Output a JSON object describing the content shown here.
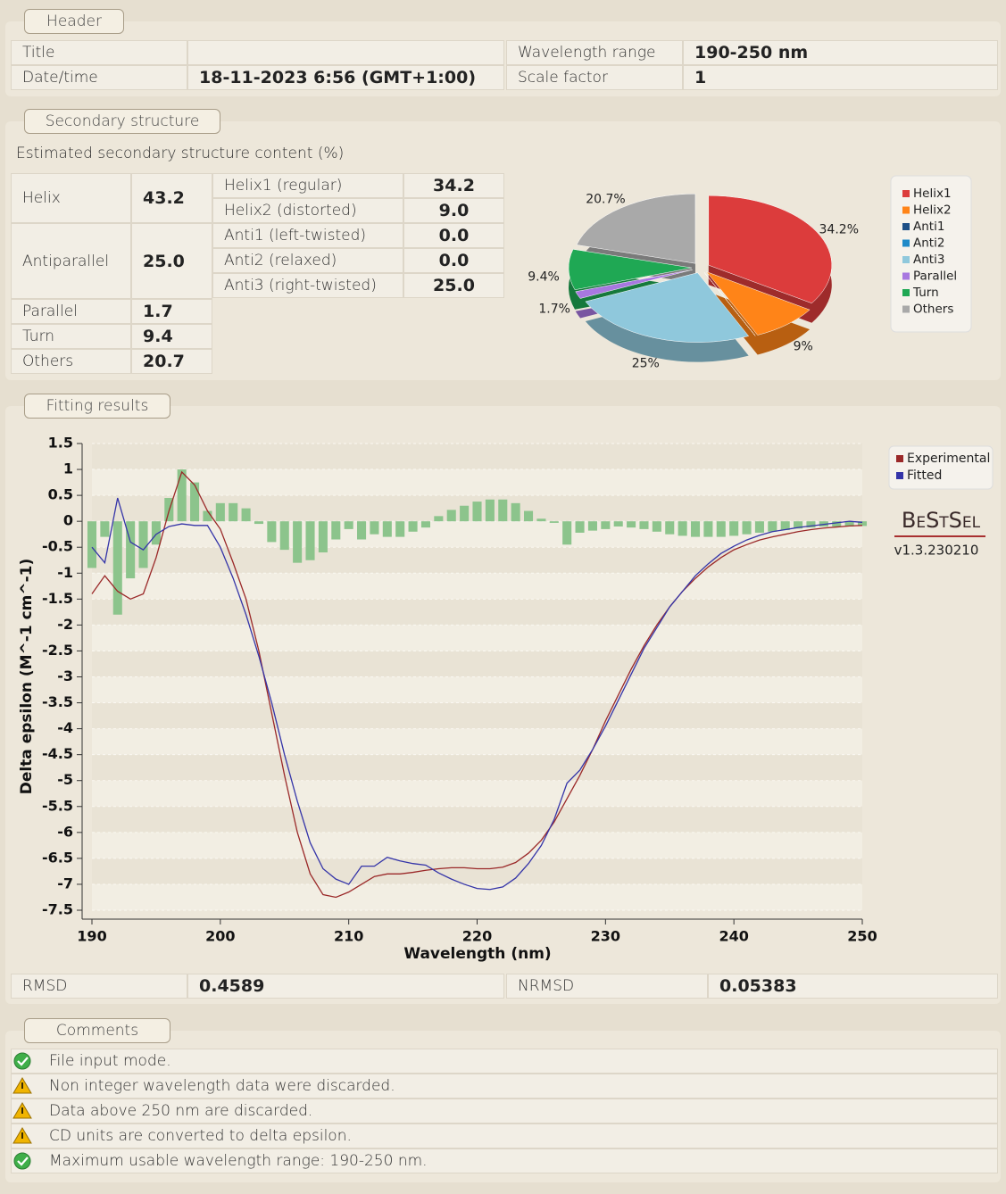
{
  "header": {
    "label": "Header",
    "title_label": "Title",
    "datetime_label": "Date/time",
    "datetime": "18-11-2023 6:56 (GMT+1:00)",
    "wavelength_label": "Wavelength range",
    "wavelength": "190-250 nm",
    "scale_label": "Scale factor",
    "scale": 1
  },
  "secondary_structure": {
    "label": "Secondary structure",
    "caption": "Estimated secondary structure content (%)",
    "groups": [
      {
        "name": "Helix",
        "value": "43.2"
      },
      {
        "name": "Antiparallel",
        "value": "25.0"
      },
      {
        "name": "Parallel",
        "value": "1.7"
      },
      {
        "name": "Turn",
        "value": "9.4"
      },
      {
        "name": "Others",
        "value": "20.7"
      }
    ],
    "subgroups": [
      {
        "name": "Helix1 (regular)",
        "value": "34.2"
      },
      {
        "name": "Helix2 (distorted)",
        "value": "9.0"
      },
      {
        "name": "Anti1 (left-twisted)",
        "value": "0.0"
      },
      {
        "name": "Anti2 (relaxed)",
        "value": "0.0"
      },
      {
        "name": "Anti3 (right-twisted)",
        "value": "25.0"
      }
    ]
  },
  "fitting": {
    "label": "Fitting results",
    "rmsd_label": "RMSD",
    "rmsd": "0.4589",
    "nrmsd_label": "NRMSD",
    "nrmsd": "0.05383",
    "logo": "BeStSel",
    "version": "v1.3.230210"
  },
  "comments": {
    "label": "Comments",
    "items": [
      {
        "text": "File input mode.",
        "status": "ok"
      },
      {
        "text": "Non integer wavelength data were discarded.",
        "status": "warning"
      },
      {
        "text": "Data above 250 nm are discarded.",
        "status": "warning"
      },
      {
        "text": "CD units are converted to delta epsilon.",
        "status": "warning"
      },
      {
        "text": "Maximum usable wavelength range: 190-250 nm.",
        "status": "ok"
      }
    ]
  },
  "chart_data": [
    {
      "type": "pie",
      "categories": [
        "Helix1",
        "Helix2",
        "Anti1",
        "Anti2",
        "Anti3",
        "Parallel",
        "Turn",
        "Others"
      ],
      "values": [
        34.2,
        9.0,
        0,
        0,
        25,
        1.7,
        9.4,
        20.7
      ],
      "value_labels": [
        "34.2%",
        "9%",
        null,
        null,
        "25%",
        "1.7%",
        "9.4%",
        "20.7%"
      ],
      "colors": [
        "#dc3c3c",
        "#ff8418",
        "#1d4f86",
        "#1f8ac8",
        "#8fc8dc",
        "#a878e0",
        "#1fa854",
        "#a9a9a9"
      ],
      "legend": "right"
    },
    {
      "type": "line",
      "xlabel": "Wavelength (nm)",
      "ylabel": "Delta epsilon (M^-1 cm^-1)",
      "x": [
        190,
        191,
        192,
        193,
        194,
        195,
        196,
        197,
        198,
        199,
        200,
        201,
        202,
        203,
        204,
        205,
        206,
        207,
        208,
        209,
        210,
        211,
        212,
        213,
        214,
        215,
        216,
        217,
        218,
        219,
        220,
        221,
        222,
        223,
        224,
        225,
        226,
        227,
        228,
        229,
        230,
        231,
        232,
        233,
        234,
        235,
        236,
        237,
        238,
        239,
        240,
        241,
        242,
        243,
        244,
        245,
        246,
        247,
        248,
        249,
        250
      ],
      "xlim": [
        190,
        250
      ],
      "xticks": [
        190,
        200,
        210,
        220,
        230,
        240,
        250
      ],
      "ylim": [
        -7.5,
        1.5
      ],
      "yticks": [
        1.5,
        1,
        0.5,
        0,
        -0.5,
        -1,
        -1.5,
        -2,
        -2.5,
        -3,
        -3.5,
        -4,
        -4.5,
        -5,
        -5.5,
        -6,
        -6.5,
        -7,
        -7.5
      ],
      "grid": true,
      "legend": "right",
      "series": [
        {
          "name": "Experimental",
          "color": "#9a2828",
          "values": [
            -1.4,
            -1.05,
            -1.35,
            -1.5,
            -1.4,
            -0.7,
            0.2,
            0.95,
            0.7,
            0.2,
            -0.15,
            -0.8,
            -1.5,
            -2.5,
            -3.7,
            -4.9,
            -6.0,
            -6.8,
            -7.2,
            -7.25,
            -7.15,
            -7.0,
            -6.85,
            -6.8,
            -6.8,
            -6.77,
            -6.73,
            -6.7,
            -6.68,
            -6.68,
            -6.7,
            -6.7,
            -6.67,
            -6.58,
            -6.4,
            -6.15,
            -5.8,
            -5.35,
            -4.9,
            -4.4,
            -3.85,
            -3.35,
            -2.85,
            -2.4,
            -2.0,
            -1.65,
            -1.35,
            -1.1,
            -0.88,
            -0.7,
            -0.55,
            -0.45,
            -0.36,
            -0.3,
            -0.25,
            -0.2,
            -0.16,
            -0.13,
            -0.11,
            -0.09,
            -0.08
          ]
        },
        {
          "name": "Fitted",
          "color": "#3434a8",
          "values": [
            -0.5,
            -0.8,
            0.45,
            -0.4,
            -0.55,
            -0.25,
            -0.1,
            -0.05,
            -0.08,
            -0.08,
            -0.5,
            -1.1,
            -1.8,
            -2.6,
            -3.5,
            -4.5,
            -5.4,
            -6.2,
            -6.7,
            -6.9,
            -7.0,
            -6.65,
            -6.65,
            -6.48,
            -6.55,
            -6.6,
            -6.63,
            -6.78,
            -6.9,
            -7.0,
            -7.08,
            -7.1,
            -7.05,
            -6.88,
            -6.6,
            -6.25,
            -5.75,
            -5.05,
            -4.8,
            -4.4,
            -3.95,
            -3.45,
            -2.95,
            -2.45,
            -2.05,
            -1.65,
            -1.35,
            -1.05,
            -0.82,
            -0.62,
            -0.48,
            -0.36,
            -0.27,
            -0.2,
            -0.16,
            -0.12,
            -0.09,
            -0.06,
            -0.03,
            0.0,
            -0.02
          ]
        }
      ],
      "bars": {
        "color": "#8cc48c",
        "values": [
          -0.9,
          -0.3,
          -1.8,
          -1.1,
          -0.9,
          -0.45,
          0.45,
          1.0,
          0.75,
          0.2,
          0.35,
          0.35,
          0.25,
          -0.05,
          -0.4,
          -0.55,
          -0.8,
          -0.75,
          -0.6,
          -0.35,
          -0.15,
          -0.35,
          -0.25,
          -0.3,
          -0.3,
          -0.2,
          -0.12,
          0.1,
          0.22,
          0.3,
          0.38,
          0.42,
          0.42,
          0.35,
          0.2,
          0.05,
          -0.03,
          -0.45,
          -0.22,
          -0.18,
          -0.15,
          -0.1,
          -0.12,
          -0.15,
          -0.2,
          -0.25,
          -0.28,
          -0.3,
          -0.3,
          -0.3,
          -0.28,
          -0.25,
          -0.22,
          -0.2,
          -0.17,
          -0.14,
          -0.12,
          -0.1,
          -0.1,
          -0.1,
          -0.09
        ]
      }
    }
  ]
}
